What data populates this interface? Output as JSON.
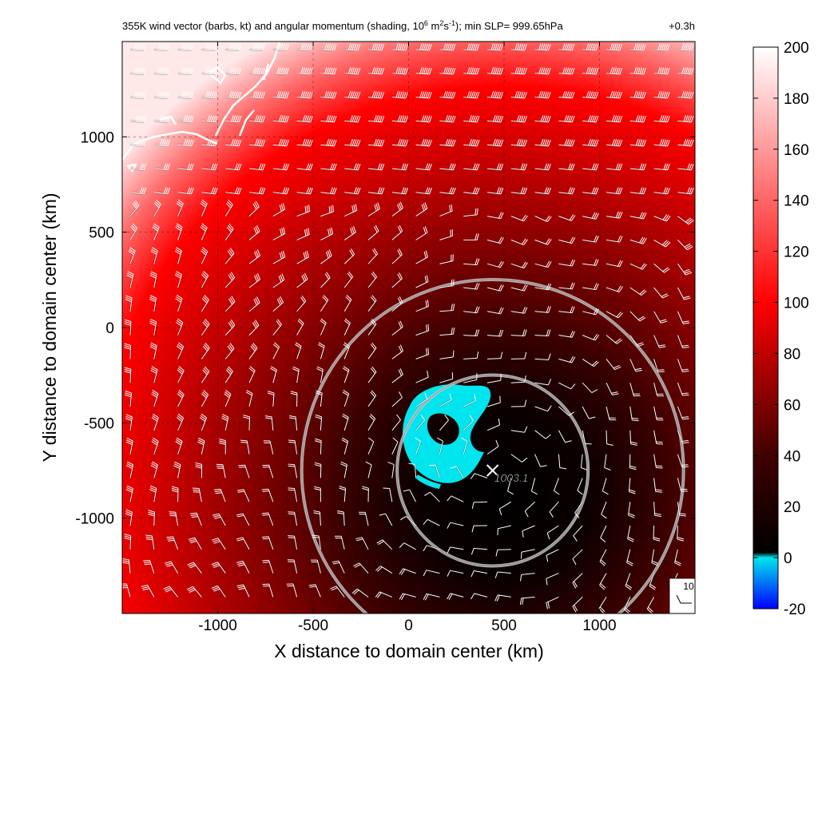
{
  "chart_data": {
    "type": "heatmap",
    "title_main": "355K wind vector (barbs, kt) and angular momentum (shading, 10",
    "title_exp1": "6",
    "title_mid1": " m",
    "title_exp2": "2",
    "title_mid2": "s",
    "title_exp3": "-1",
    "title_end": "); min SLP= 999.65hPa",
    "time_label": "+0.3h",
    "xlabel": "X distance to domain center (km)",
    "ylabel": "Y distance to domain center (km)",
    "xlim": [
      -1500,
      1500
    ],
    "ylim": [
      -1500,
      1500
    ],
    "x_ticks": [
      -1000,
      -500,
      0,
      500,
      1000
    ],
    "x_tick_labels": [
      "-1000",
      "-500",
      "0",
      "500",
      "1000"
    ],
    "y_ticks": [
      1000,
      500,
      0,
      -500,
      -1000
    ],
    "y_tick_labels": [
      "1000",
      "500",
      "0",
      "-500",
      "-1000"
    ],
    "colorbar": {
      "min": -20,
      "max": 200,
      "ticks": [
        200,
        180,
        160,
        140,
        120,
        100,
        80,
        60,
        40,
        20,
        0,
        -20
      ],
      "tick_labels": [
        "200",
        "180",
        "160",
        "140",
        "120",
        "100",
        "80",
        "60",
        "40",
        "20",
        "0",
        "-20"
      ]
    },
    "storm_center": {
      "x": 440,
      "y": -750,
      "label": "1003.1"
    },
    "range_rings_km": [
      500,
      1000
    ],
    "reference_barb_label": "10",
    "colors": {
      "negative_cyan": "#00e5ee",
      "blue": "#0000ff",
      "black": "#000000",
      "red": "#ff0000",
      "white": "#ffffff",
      "ring": "#c8c8c8"
    },
    "grid": true
  }
}
